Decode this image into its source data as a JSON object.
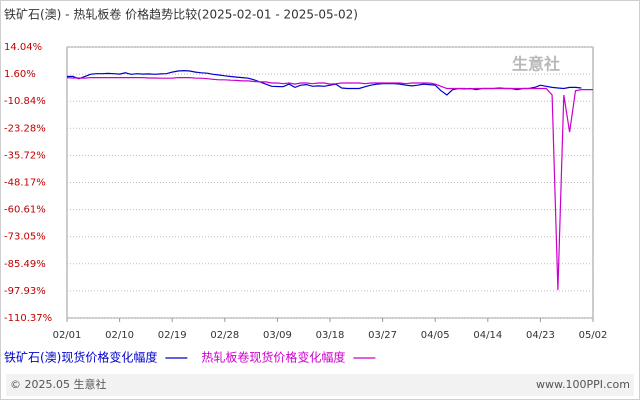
{
  "chart_data": {
    "type": "line",
    "title": "铁矿石(澳) - 热轧板卷 价格趋势比较(2025-02-01 - 2025-05-02)",
    "watermark": "生意社",
    "footer_left": "© 2025.05 生意社",
    "footer_right": "www.100PPI.com",
    "categories": [
      "02/01",
      null,
      null,
      null,
      null,
      null,
      null,
      null,
      null,
      "02/10",
      null,
      null,
      null,
      null,
      null,
      null,
      null,
      null,
      "02/19",
      null,
      null,
      null,
      null,
      null,
      null,
      null,
      null,
      "02/28",
      null,
      null,
      null,
      null,
      null,
      null,
      null,
      null,
      "03/09",
      null,
      null,
      null,
      null,
      null,
      null,
      null,
      null,
      "03/18",
      null,
      null,
      null,
      null,
      null,
      null,
      null,
      null,
      "03/27",
      null,
      null,
      null,
      null,
      null,
      null,
      null,
      null,
      "04/05",
      null,
      null,
      null,
      null,
      null,
      null,
      null,
      null,
      "04/14",
      null,
      null,
      null,
      null,
      null,
      null,
      null,
      null,
      "04/23",
      null,
      null,
      null,
      null,
      null,
      null,
      null,
      null,
      "05/02"
    ],
    "ylim": [
      -110.37,
      14.04
    ],
    "yticks": [
      {
        "value": 14.04,
        "label": "14.04%"
      },
      {
        "value": 1.6,
        "label": "1.60%"
      },
      {
        "value": -10.84,
        "label": "-10.84%"
      },
      {
        "value": -23.28,
        "label": "-23.28%"
      },
      {
        "value": -35.72,
        "label": "-35.72%"
      },
      {
        "value": -48.17,
        "label": "-48.17%"
      },
      {
        "value": -60.61,
        "label": "-60.61%"
      },
      {
        "value": -73.05,
        "label": "-73.05%"
      },
      {
        "value": -85.49,
        "label": "-85.49%"
      },
      {
        "value": -97.93,
        "label": "-97.93%"
      },
      {
        "value": -110.37,
        "label": "-110.37%"
      }
    ],
    "grid": true,
    "series": [
      {
        "name": "铁矿石(澳)现货价格变化幅度",
        "color": "#0000cc",
        "values": [
          0.5,
          0.6,
          -0.5,
          0.4,
          1.5,
          1.8,
          1.8,
          1.9,
          1.8,
          1.6,
          2.2,
          1.5,
          1.8,
          1.6,
          1.7,
          1.5,
          1.7,
          1.8,
          2.5,
          3.0,
          3.2,
          3.0,
          2.5,
          2.2,
          2.0,
          1.5,
          1.2,
          0.8,
          0.5,
          0.2,
          0.0,
          -0.3,
          -1.0,
          -2.0,
          -3.0,
          -4.0,
          -4.1,
          -4.2,
          -3.0,
          -4.5,
          -3.5,
          -3.2,
          -4.0,
          -3.8,
          -4.0,
          -3.5,
          -3.0,
          -4.8,
          -5.0,
          -5.0,
          -5.0,
          -4.2,
          -3.5,
          -3.0,
          -2.8,
          -2.8,
          -2.8,
          -3.0,
          -3.5,
          -3.8,
          -3.5,
          -3.0,
          -3.2,
          -3.5,
          -6.0,
          -8.0,
          -5.5,
          -5.0,
          -5.2,
          -5.0,
          -5.5,
          -5.0,
          -5.0,
          -5.0,
          -4.8,
          -5.0,
          -5.0,
          -5.5,
          -5.0,
          -5.0,
          -4.5,
          -3.5,
          -4.0,
          -4.5,
          -4.8,
          -5.0,
          -4.5,
          -4.5,
          -4.8,
          null,
          null
        ]
      },
      {
        "name": "热轧板卷现货价格变化幅度",
        "color": "#cc00cc",
        "values": [
          0.0,
          -0.2,
          -0.2,
          -0.3,
          0.0,
          0.0,
          0.0,
          0.0,
          0.0,
          0.0,
          0.0,
          0.0,
          0.0,
          0.0,
          -0.2,
          -0.2,
          -0.3,
          -0.3,
          -0.3,
          0.0,
          0.0,
          0.0,
          -0.3,
          -0.3,
          -0.5,
          -0.8,
          -1.0,
          -1.0,
          -1.2,
          -1.3,
          -1.5,
          -1.5,
          -1.8,
          -2.0,
          -2.0,
          -2.5,
          -2.5,
          -2.8,
          -2.5,
          -3.0,
          -2.5,
          -2.5,
          -2.8,
          -2.5,
          -2.5,
          -3.0,
          -2.8,
          -2.5,
          -2.5,
          -2.5,
          -2.5,
          -2.8,
          -2.5,
          -2.5,
          -2.5,
          -2.5,
          -2.5,
          -2.5,
          -2.8,
          -2.5,
          -2.5,
          -2.5,
          -2.5,
          -3.0,
          -4.0,
          -5.0,
          -5.0,
          -5.0,
          -5.0,
          -5.2,
          -5.0,
          -5.0,
          -5.0,
          -5.0,
          -5.0,
          -5.0,
          -5.0,
          -5.0,
          -5.0,
          -5.0,
          -5.0,
          -5.0,
          -5.0,
          -8.0,
          -97.5,
          -8.0,
          -25.0,
          -6.0,
          -5.5,
          -5.5,
          -5.5
        ]
      }
    ]
  }
}
